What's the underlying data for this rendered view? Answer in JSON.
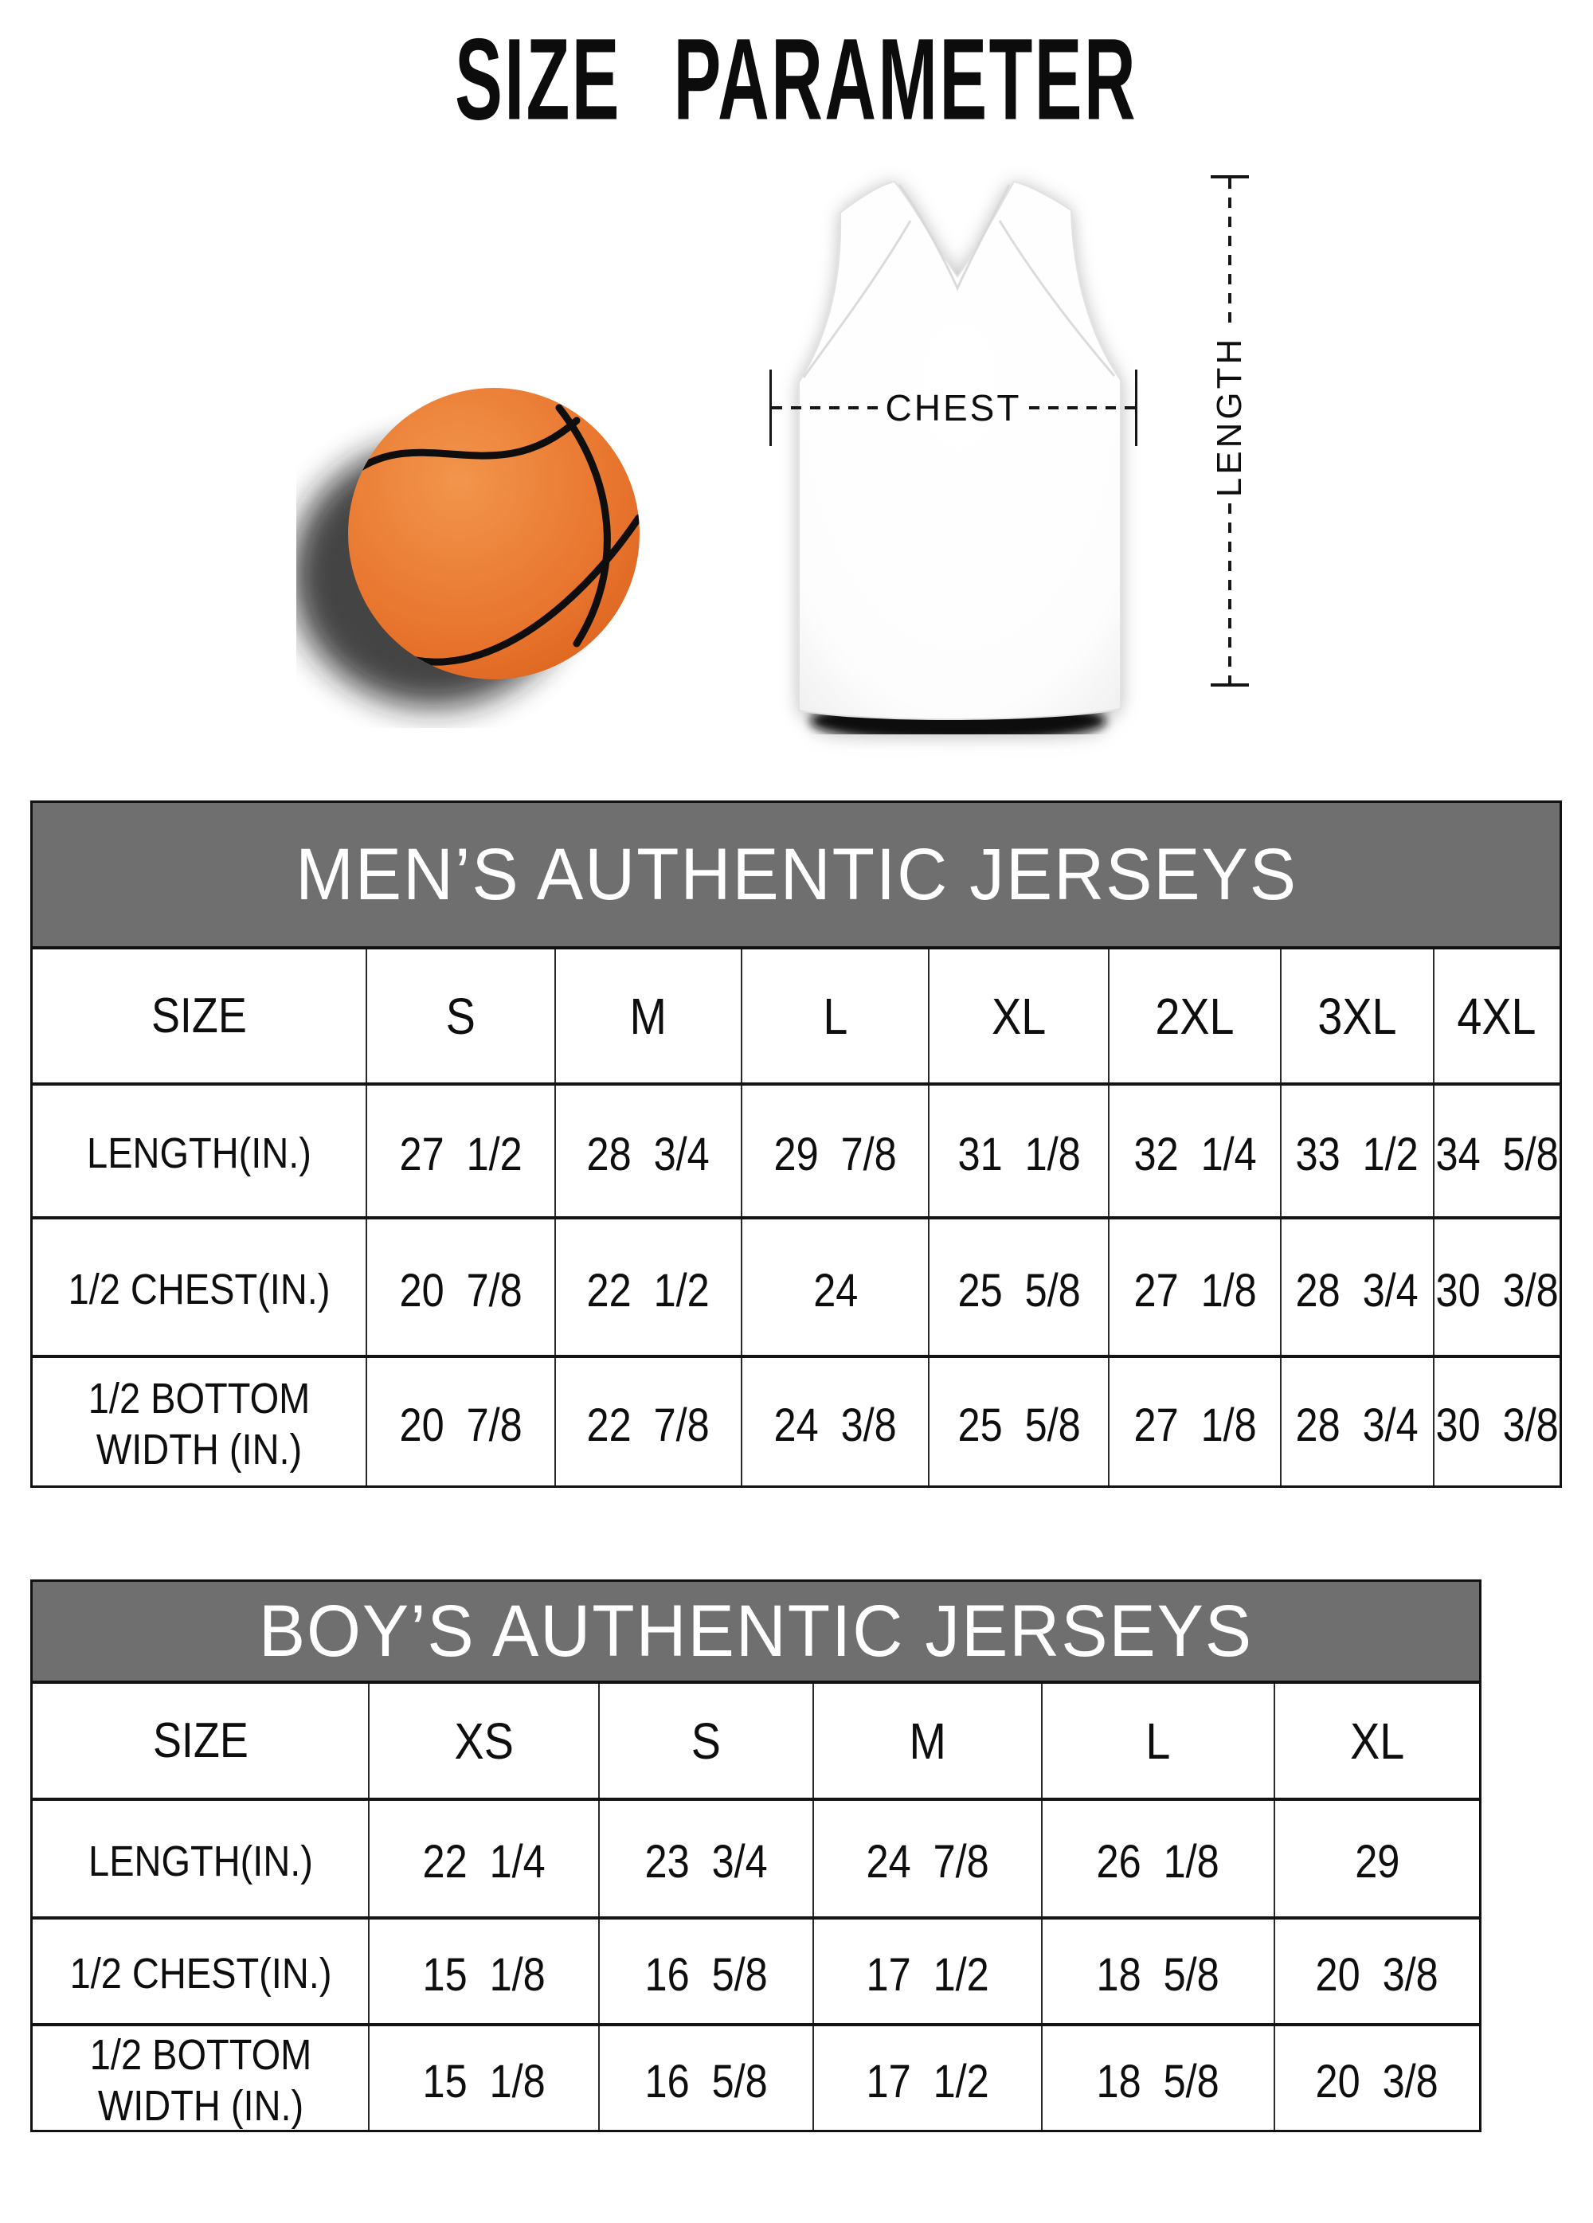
{
  "title": "SIZE PARAMETER",
  "diagram": {
    "chest_label": "CHEST",
    "length_label": "LENGTH",
    "icons": [
      "basketball-icon",
      "jersey-icon"
    ]
  },
  "colors": {
    "table_header_bg": "#6f6f6f",
    "table_header_text": "#ffffff",
    "basketball_orange": "#e8752e",
    "basketball_orange_light": "#f2954c",
    "basketball_orange_dark": "#dd6420",
    "seam_black": "#0e0e0e"
  },
  "tables": [
    {
      "id": "men",
      "title": "MEN’S AUTHENTIC JERSEYS",
      "size_label": "SIZE",
      "columns": [
        "S",
        "M",
        "L",
        "XL",
        "2XL",
        "3XL",
        "4XL"
      ],
      "rows": [
        {
          "label": "LENGTH(IN.)",
          "values": [
            "27 1/2",
            "28 3/4",
            "29 7/8",
            "31 1/8",
            "32 1/4",
            "33 1/2",
            "34 5/8"
          ]
        },
        {
          "label": "1/2 CHEST(IN.)",
          "values": [
            "20 7/8",
            "22 1/2",
            "24",
            "25 5/8",
            "27 1/8",
            "28 3/4",
            "30 3/8"
          ]
        },
        {
          "label": "1/2 BOTTOM\nWIDTH (IN.)",
          "values": [
            "20 7/8",
            "22 7/8",
            "24 3/8",
            "25 5/8",
            "27 1/8",
            "28 3/4",
            "30 3/8"
          ]
        }
      ]
    },
    {
      "id": "boys",
      "title": "BOY’S AUTHENTIC JERSEYS",
      "size_label": "SIZE",
      "columns": [
        "XS",
        "S",
        "M",
        "L",
        "XL"
      ],
      "rows": [
        {
          "label": "LENGTH(IN.)",
          "values": [
            "22 1/4",
            "23 3/4",
            "24 7/8",
            "26 1/8",
            "29"
          ]
        },
        {
          "label": "1/2 CHEST(IN.)",
          "values": [
            "15 1/8",
            "16 5/8",
            "17 1/2",
            "18 5/8",
            "20 3/8"
          ]
        },
        {
          "label": "1/2 BOTTOM\nWIDTH (IN.)",
          "values": [
            "15 1/8",
            "16 5/8",
            "17 1/2",
            "18 5/8",
            "20 3/8"
          ]
        }
      ]
    }
  ]
}
